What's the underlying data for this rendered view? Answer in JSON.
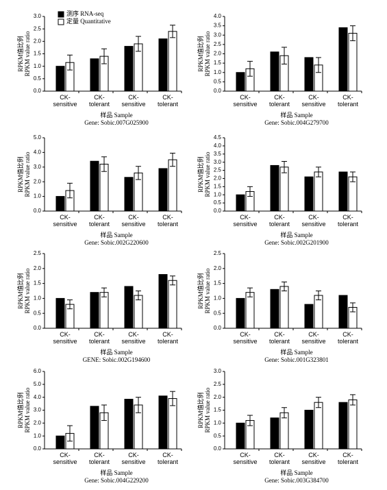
{
  "chart_data": [
    {
      "type": "bar",
      "ylabel": [
        "RPKM值比例",
        "RPKM value ratio"
      ],
      "xlabel": "样品 Sample",
      "caption": "Gene: Sobic.007G025900",
      "legend": "upper left",
      "categories": [
        "CK-\nsensitive",
        "CK-\ntolerant",
        "CK-\nsensitive",
        "CK-\ntolerant"
      ],
      "series": [
        {
          "name": "测序 RNA-seq",
          "color": "#000000",
          "values": [
            1.0,
            1.3,
            1.8,
            2.1
          ]
        },
        {
          "name": "定量 Quantitative",
          "color": "#ffffff",
          "values": [
            1.15,
            1.4,
            1.9,
            2.4
          ],
          "errors": [
            0.3,
            0.3,
            0.3,
            0.25
          ]
        }
      ],
      "ylim": [
        0,
        3
      ],
      "yticks": [
        {
          "value": 0,
          "label": "0.0"
        },
        0.5,
        {
          "value": 1,
          "label": "1.0"
        },
        1.5,
        {
          "value": 2,
          "label": "2.0"
        },
        2.5,
        {
          "value": 3,
          "label": "3.0"
        }
      ]
    },
    {
      "type": "bar",
      "ylabel": [
        "RPKM值比例",
        "RPKM value ratio"
      ],
      "xlabel": "样品 Sample",
      "caption": "Gene: Sobic.004G279700",
      "categories": [
        "CK-\nsensitive",
        "CK-\ntolerant",
        "CK-\nsensitive",
        "CK-\ntolerant"
      ],
      "series": [
        {
          "color": "#000000",
          "values": [
            1.0,
            2.1,
            1.8,
            3.4
          ]
        },
        {
          "color": "#ffffff",
          "values": [
            1.2,
            1.9,
            1.4,
            3.1
          ],
          "errors": [
            0.4,
            0.45,
            0.4,
            0.4
          ]
        }
      ],
      "ylim": [
        0,
        4
      ],
      "yticks": [
        {
          "value": 0,
          "label": "0.0"
        },
        0.5,
        {
          "value": 1,
          "label": "1.0"
        },
        1.5,
        {
          "value": 2,
          "label": "2.0"
        },
        2.5,
        {
          "value": 3,
          "label": "3.0"
        },
        3.5,
        {
          "value": 4,
          "label": "4.0"
        }
      ]
    },
    {
      "type": "bar",
      "ylabel": [
        "RPKM值比例",
        "RPKM value ratio"
      ],
      "xlabel": "样品 Sample",
      "caption": "Gene: Sobic.002G220600",
      "categories": [
        "CK-\nsensitive",
        "CK-\ntolerant",
        "CK-\nsensitive",
        "CK-\ntolerant"
      ],
      "series": [
        {
          "color": "#000000",
          "values": [
            1.0,
            3.4,
            2.3,
            2.9
          ]
        },
        {
          "color": "#ffffff",
          "values": [
            1.4,
            3.2,
            2.6,
            3.5
          ],
          "errors": [
            0.5,
            0.5,
            0.45,
            0.45
          ]
        }
      ],
      "ylim": [
        0,
        5
      ],
      "yticks": [
        {
          "value": 0,
          "label": "0.0"
        },
        {
          "value": 1,
          "label": "1.0"
        },
        {
          "value": 2,
          "label": "2.0"
        },
        {
          "value": 3,
          "label": "3.0"
        },
        {
          "value": 4,
          "label": "4.0"
        },
        {
          "value": 5,
          "label": "5.0"
        }
      ]
    },
    {
      "type": "bar",
      "ylabel": [
        "RPKM值比例",
        "RPKM value ratio"
      ],
      "xlabel": "样品 Sample",
      "caption": "Gene: Sobic.002G201900",
      "categories": [
        "CK-\nsensitive",
        "CK-\ntolerant",
        "CK-\nsensitive",
        "CK-\ntolerant"
      ],
      "series": [
        {
          "color": "#000000",
          "values": [
            1.0,
            2.8,
            2.1,
            2.4
          ]
        },
        {
          "color": "#ffffff",
          "values": [
            1.2,
            2.7,
            2.4,
            2.1
          ],
          "errors": [
            0.3,
            0.35,
            0.3,
            0.3
          ]
        }
      ],
      "ylim": [
        0,
        4.5
      ],
      "yticks": [
        {
          "value": 0,
          "label": "0.0"
        },
        0.5,
        {
          "value": 1,
          "label": "1.0"
        },
        1.5,
        {
          "value": 2,
          "label": "2.0"
        },
        2.5,
        {
          "value": 3,
          "label": "3.0"
        },
        3.5,
        {
          "value": 4,
          "label": "4.0"
        },
        4.5
      ]
    },
    {
      "type": "bar",
      "ylabel": [
        "RPKM值比例",
        "RPKM value ratio"
      ],
      "xlabel": "样品 Sample",
      "caption": "GENE: Sobic.002G194600",
      "categories": [
        "CK-\nsensitive",
        "CK-\ntolerant",
        "CK-\nsensitive",
        "CK-\ntolerant"
      ],
      "series": [
        {
          "color": "#000000",
          "values": [
            1.0,
            1.2,
            1.4,
            1.8
          ]
        },
        {
          "color": "#ffffff",
          "values": [
            0.8,
            1.2,
            1.1,
            1.6
          ],
          "errors": [
            0.15,
            0.15,
            0.15,
            0.15
          ]
        }
      ],
      "ylim": [
        0,
        2.5
      ],
      "yticks": [
        {
          "value": 0,
          "label": "0.0"
        },
        0.5,
        {
          "value": 1,
          "label": "1.0"
        },
        1.5,
        {
          "value": 2,
          "label": "2.0"
        },
        2.5
      ]
    },
    {
      "type": "bar",
      "ylabel": [
        "RPKM值比例",
        "RPKM value ratio"
      ],
      "xlabel": "样品 Sample",
      "caption": "Gene: Sobic.001G323801",
      "categories": [
        "CK-\nsensitive",
        "CK-\ntolerant",
        "CK-\nsensitive",
        "CK-\ntolerant"
      ],
      "series": [
        {
          "color": "#000000",
          "values": [
            1.0,
            1.3,
            0.8,
            1.1
          ]
        },
        {
          "color": "#ffffff",
          "values": [
            1.2,
            1.4,
            1.1,
            0.7
          ],
          "errors": [
            0.15,
            0.15,
            0.15,
            0.15
          ]
        }
      ],
      "ylim": [
        0,
        2.5
      ],
      "yticks": [
        {
          "value": 0,
          "label": "0.0"
        },
        0.5,
        {
          "value": 1,
          "label": "1.0"
        },
        1.5,
        {
          "value": 2,
          "label": "2.0"
        },
        2.5
      ]
    },
    {
      "type": "bar",
      "ylabel": [
        "RPKM值比例",
        "RPKM value ratio"
      ],
      "xlabel": "样品 Sample",
      "caption": "Gene: Sobic.004G229200",
      "categories": [
        "CK-\nsensitive",
        "CK-\ntolerant",
        "CK-\nsensitive",
        "CK-\ntolerant"
      ],
      "series": [
        {
          "color": "#000000",
          "values": [
            1.0,
            3.3,
            3.85,
            4.1
          ]
        },
        {
          "color": "#ffffff",
          "values": [
            1.2,
            2.8,
            3.4,
            3.9
          ],
          "errors": [
            0.6,
            0.6,
            0.6,
            0.55
          ]
        }
      ],
      "ylim": [
        0,
        6
      ],
      "yticks": [
        {
          "value": 0,
          "label": "0.0"
        },
        {
          "value": 1,
          "label": "1.0"
        },
        {
          "value": 2,
          "label": "2.0"
        },
        {
          "value": 3,
          "label": "3.0"
        },
        {
          "value": 4,
          "label": "4.0"
        },
        {
          "value": 5,
          "label": "5.0"
        },
        {
          "value": 6,
          "label": "6.0"
        }
      ]
    },
    {
      "type": "bar",
      "ylabel": [
        "RPKM值比例",
        "RPKM value ratio"
      ],
      "xlabel": "样品 Sample",
      "caption": "Gene: Sobic.003G384700",
      "categories": [
        "CK-\nsensitive",
        "CK-\ntolerant",
        "CK-\nsensitive",
        "CK-\ntolerant"
      ],
      "series": [
        {
          "color": "#000000",
          "values": [
            1.0,
            1.2,
            1.5,
            1.8
          ]
        },
        {
          "color": "#ffffff",
          "values": [
            1.1,
            1.4,
            1.8,
            1.9
          ],
          "errors": [
            0.2,
            0.2,
            0.2,
            0.2
          ]
        }
      ],
      "ylim": [
        0,
        3
      ],
      "yticks": [
        {
          "value": 0,
          "label": "0.0"
        },
        0.5,
        {
          "value": 1,
          "label": "1.0"
        },
        1.5,
        {
          "value": 2,
          "label": "2.0"
        },
        2.5,
        {
          "value": 3,
          "label": "3.0"
        }
      ]
    }
  ]
}
